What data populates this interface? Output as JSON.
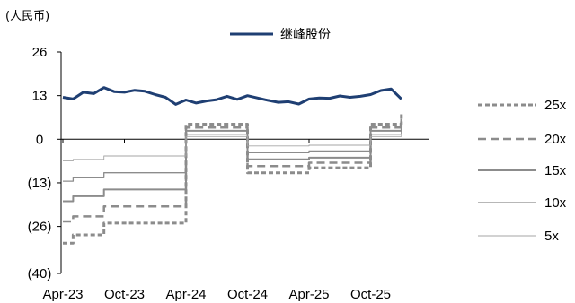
{
  "chart_data": {
    "type": "line",
    "unit_label": "(人民币)",
    "x_tick_labels": [
      "Apr-23",
      "Oct-23",
      "Apr-24",
      "Oct-24",
      "Apr-25",
      "Oct-25"
    ],
    "x_ticks": [
      "2023-04",
      "2023-10",
      "2024-04",
      "2024-10",
      "2025-04",
      "2025-10"
    ],
    "x_range": [
      "2023-04",
      "2026-01"
    ],
    "y_ticks": [
      26,
      13,
      0,
      -13,
      -26,
      -40
    ],
    "y_tick_labels": [
      "26",
      "13",
      "0",
      "(13)",
      "(26)",
      "(40)"
    ],
    "ylim": [
      -40,
      26
    ],
    "grid": false,
    "legend": "top-center and right",
    "series": [
      {
        "name": "继峰股份",
        "color": "#1f3f73",
        "style": "solid-thick",
        "x": [
          "2023-04",
          "2023-05",
          "2023-06",
          "2023-07",
          "2023-08",
          "2023-09",
          "2023-10",
          "2023-11",
          "2023-12",
          "2024-01",
          "2024-02",
          "2024-03",
          "2024-04",
          "2024-05",
          "2024-06",
          "2024-07",
          "2024-08",
          "2024-09",
          "2024-10",
          "2024-11",
          "2024-12",
          "2025-01",
          "2025-02",
          "2025-03",
          "2025-04",
          "2025-05",
          "2025-06",
          "2025-07",
          "2025-08",
          "2025-09",
          "2025-10",
          "2025-11",
          "2025-12",
          "2026-01"
        ],
        "values": [
          12.5,
          12.0,
          14.0,
          13.6,
          15.4,
          14.2,
          14.0,
          14.6,
          14.3,
          13.3,
          12.5,
          10.4,
          11.7,
          10.8,
          11.4,
          11.8,
          12.8,
          11.9,
          13.0,
          12.3,
          11.6,
          11.0,
          11.2,
          10.5,
          12.0,
          12.3,
          12.2,
          12.9,
          12.5,
          12.8,
          13.3,
          14.5,
          15.0,
          12.0
        ]
      },
      {
        "name": "25x",
        "color": "#8c8c8c",
        "style": "dotted-thick",
        "x": [
          "2023-04",
          "2023-05",
          "2023-05",
          "2023-08",
          "2023-08",
          "2024-04",
          "2024-04",
          "2024-10",
          "2024-10",
          "2025-04",
          "2025-04",
          "2025-10",
          "2025-10",
          "2026-01",
          "2026-01"
        ],
        "values": [
          -31,
          -31,
          -28.5,
          -28.5,
          -25,
          -25,
          4.5,
          4.5,
          -10,
          -10,
          -8.5,
          -8.5,
          4.5,
          4.5,
          8
        ]
      },
      {
        "name": "20x",
        "color": "#8c8c8c",
        "style": "dashed",
        "x": [
          "2023-04",
          "2023-05",
          "2023-05",
          "2023-08",
          "2023-08",
          "2024-04",
          "2024-04",
          "2024-10",
          "2024-10",
          "2025-04",
          "2025-04",
          "2025-10",
          "2025-10",
          "2026-01",
          "2026-01"
        ],
        "values": [
          -24.5,
          -24.5,
          -23,
          -23,
          -20,
          -20,
          3.5,
          3.5,
          -8,
          -8,
          -7,
          -7,
          3.5,
          3.5,
          6
        ]
      },
      {
        "name": "15x",
        "color": "#8c8c8c",
        "style": "solid-medium",
        "x": [
          "2023-04",
          "2023-05",
          "2023-05",
          "2023-08",
          "2023-08",
          "2024-04",
          "2024-04",
          "2024-10",
          "2024-10",
          "2025-04",
          "2025-04",
          "2025-10",
          "2025-10",
          "2026-01",
          "2026-01"
        ],
        "values": [
          -18.5,
          -18.5,
          -17,
          -17,
          -15,
          -15,
          2.5,
          2.5,
          -6,
          -6,
          -5.5,
          -5.5,
          2.5,
          2.5,
          4.5
        ]
      },
      {
        "name": "10x",
        "color": "#8c8c8c",
        "style": "solid-thin",
        "x": [
          "2023-04",
          "2023-05",
          "2023-05",
          "2023-08",
          "2023-08",
          "2024-04",
          "2024-04",
          "2024-10",
          "2024-10",
          "2025-04",
          "2025-04",
          "2025-10",
          "2025-10",
          "2026-01",
          "2026-01"
        ],
        "values": [
          -12.5,
          -12.5,
          -11.5,
          -11.5,
          -10,
          -10,
          1.5,
          1.5,
          -4,
          -4,
          -3.5,
          -3.5,
          1.5,
          1.5,
          3
        ]
      },
      {
        "name": "5x",
        "color": "#a6a6a6",
        "style": "solid-hairline",
        "x": [
          "2023-04",
          "2023-05",
          "2023-05",
          "2023-08",
          "2023-08",
          "2024-04",
          "2024-04",
          "2024-10",
          "2024-10",
          "2025-04",
          "2025-04",
          "2025-10",
          "2025-10",
          "2026-01",
          "2026-01"
        ],
        "values": [
          -6.5,
          -6.5,
          -6,
          -6,
          -5,
          -5,
          0.8,
          0.8,
          -2,
          -2,
          -1.8,
          -1.8,
          0.8,
          0.8,
          1.5
        ]
      }
    ]
  }
}
